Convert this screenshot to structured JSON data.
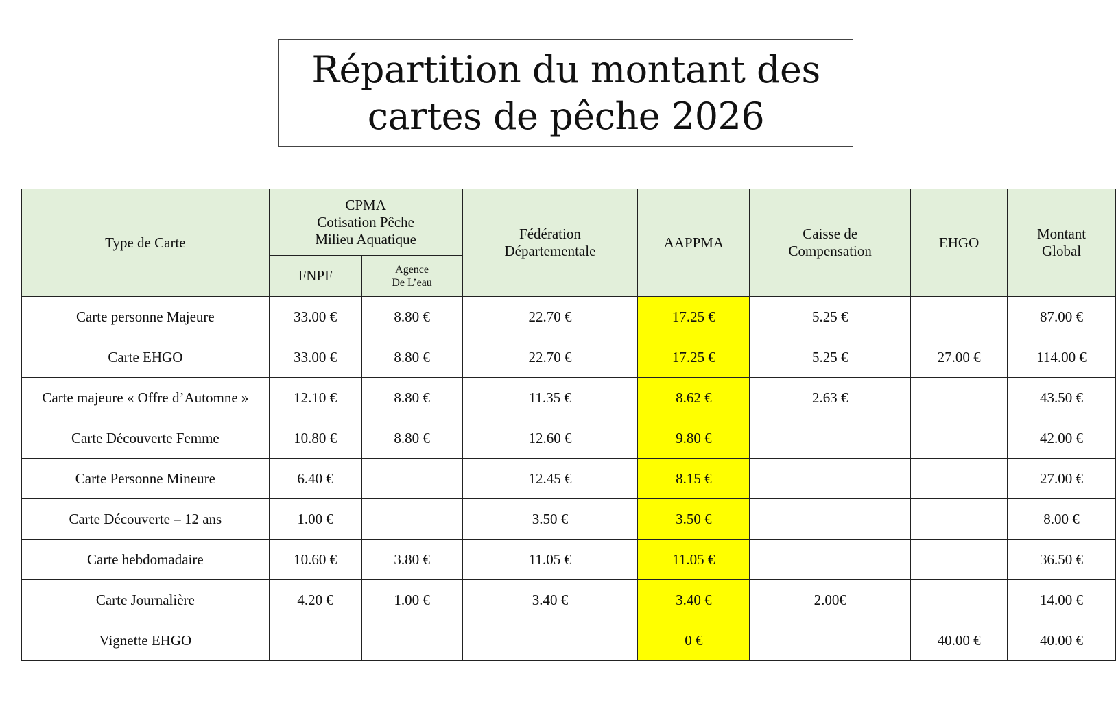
{
  "title": {
    "line1": "Répartition du montant des",
    "line2": "cartes de pêche 2026"
  },
  "colors": {
    "header_bg": "#e2efda",
    "highlight": "#ffff00"
  },
  "header": {
    "type": "Type de Carte",
    "cpma": {
      "l1": "CPMA",
      "l2": "Cotisation Pêche",
      "l3": "Milieu Aquatique"
    },
    "fnpf": "FNPF",
    "agence": {
      "l1": "Agence",
      "l2": "De L’eau"
    },
    "federation": {
      "l1": "Fédération",
      "l2": "Départementale"
    },
    "aappma": "AAPPMA",
    "caisse": {
      "l1": "Caisse de",
      "l2": "Compensation"
    },
    "ehgo": "EHGO",
    "montant": {
      "l1": "Montant",
      "l2": "Global"
    }
  },
  "rows": [
    {
      "type": "Carte personne Majeure",
      "fnpf": "33.00 €",
      "agence": "8.80 €",
      "federation": "22.70 €",
      "aappma": "17.25 €",
      "caisse": "5.25 €",
      "ehgo": "",
      "montant": "87.00 €"
    },
    {
      "type": "Carte EHGO",
      "fnpf": "33.00 €",
      "agence": "8.80 €",
      "federation": "22.70 €",
      "aappma": "17.25 €",
      "caisse": "5.25 €",
      "ehgo": "27.00 €",
      "montant": "114.00 €"
    },
    {
      "type": "Carte majeure « Offre d’Automne »",
      "fnpf": "12.10 €",
      "agence": "8.80 €",
      "federation": "11.35 €",
      "aappma": "8.62 €",
      "caisse": "2.63 €",
      "ehgo": "",
      "montant": "43.50 €"
    },
    {
      "type": "Carte Découverte Femme",
      "fnpf": "10.80 €",
      "agence": "8.80 €",
      "federation": "12.60 €",
      "aappma": "9.80 €",
      "caisse": "",
      "ehgo": "",
      "montant": "42.00 €"
    },
    {
      "type": "Carte Personne Mineure",
      "fnpf": "6.40 €",
      "agence": "",
      "federation": "12.45 €",
      "aappma": "8.15 €",
      "caisse": "",
      "ehgo": "",
      "montant": "27.00 €"
    },
    {
      "type": "Carte Découverte – 12 ans",
      "fnpf": "1.00 €",
      "agence": "",
      "federation": "3.50 €",
      "aappma": "3.50 €",
      "caisse": "",
      "ehgo": "",
      "montant": "8.00 €"
    },
    {
      "type": "Carte hebdomadaire",
      "fnpf": "10.60 €",
      "agence": "3.80 €",
      "federation": "11.05 €",
      "aappma": "11.05 €",
      "caisse": "",
      "ehgo": "",
      "montant": "36.50 €"
    },
    {
      "type": "Carte Journalière",
      "fnpf": "4.20 €",
      "agence": "1.00 €",
      "federation": "3.40 €",
      "aappma": "3.40 €",
      "caisse": "2.00€",
      "ehgo": "",
      "montant": "14.00 €"
    },
    {
      "type": "Vignette EHGO",
      "fnpf": "",
      "agence": "",
      "federation": "",
      "aappma": "0 €",
      "caisse": "",
      "ehgo": "40.00 €",
      "montant": "40.00 €"
    }
  ]
}
